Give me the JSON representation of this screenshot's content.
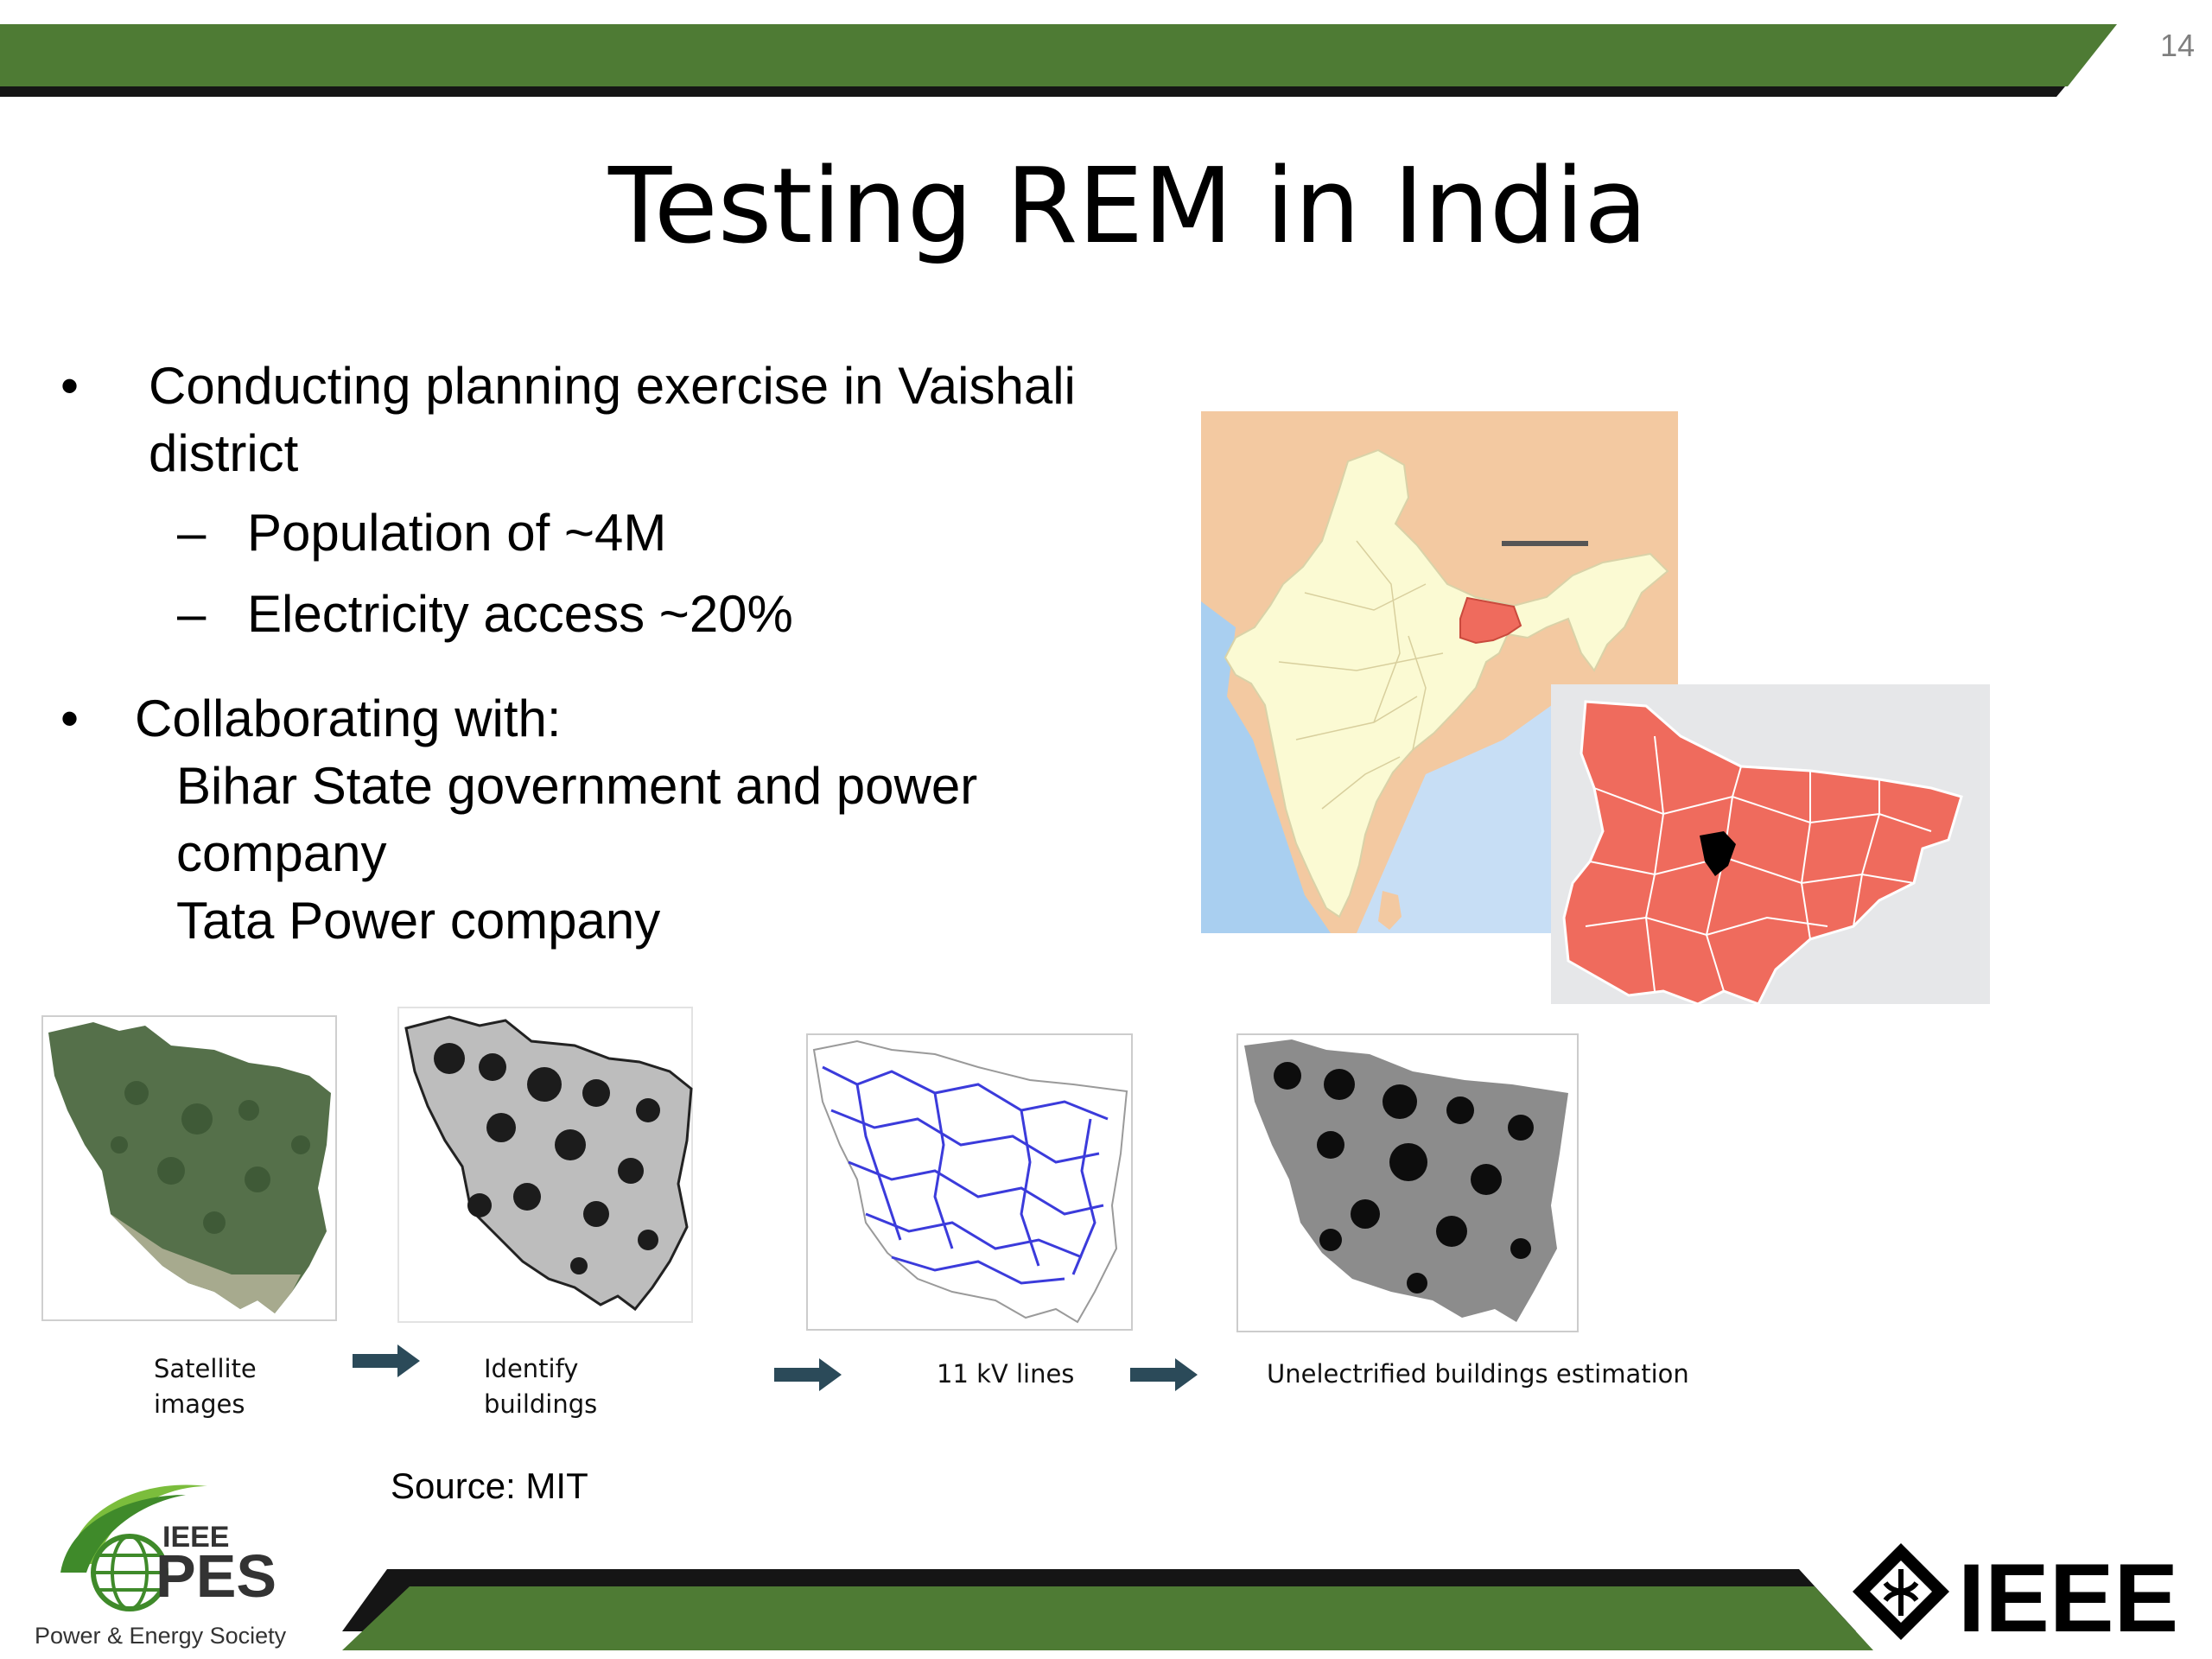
{
  "slide": {
    "page_number": "14",
    "title": "Testing REM in India"
  },
  "bullets": {
    "b1_line1": "Conducting planning exercise in Vaishali",
    "b1_line2": "district",
    "sub1": "Population of ~4M",
    "sub2": "Electricity access ~20%",
    "b2": "Collaborating with:",
    "collab1_line1": "Bihar State government and power",
    "collab1_line2": "company",
    "collab2": "Tata Power company",
    "bullet_glyph": "•",
    "dash_glyph": "–"
  },
  "pipeline": {
    "step1_line1": "Satellite",
    "step1_line2": "images",
    "step2_line1": "Identify",
    "step2_line2": "buildings",
    "step3": "11 kV lines",
    "step4": "Unelectrified buildings estimation"
  },
  "source": "Source: MIT",
  "logos": {
    "pes_top": "IEEE",
    "pes_main": "PES",
    "pes_sub": "Power & Energy Society",
    "ieee": "IEEE"
  },
  "colors": {
    "banner_green": "#4e7b34",
    "banner_dark": "#151515",
    "india_land": "#fbfad3",
    "neighbors": "#f3c9a1",
    "sea": "#a9cff0",
    "bihar": "#ef6b5d",
    "vaishali": "#000000",
    "lines_blue": "#3b3bdb",
    "arrow": "#2b4a59"
  }
}
